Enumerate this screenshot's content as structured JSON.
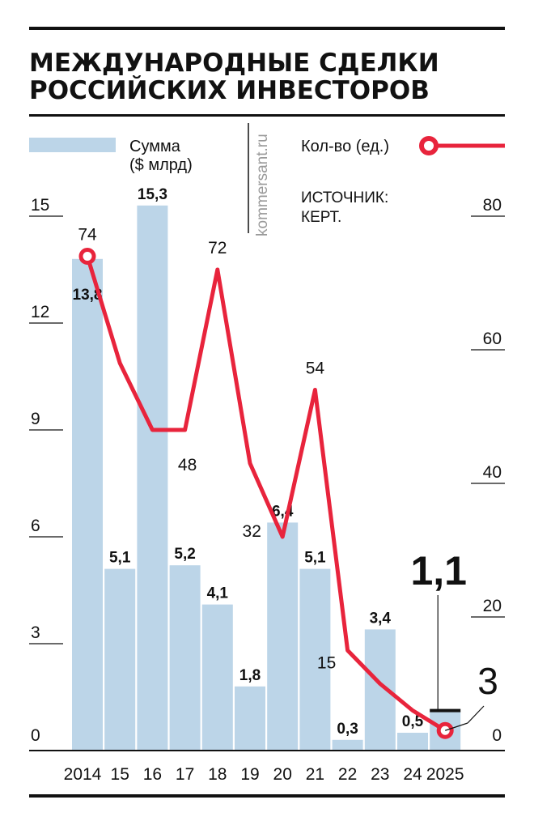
{
  "title_lines": [
    "МЕЖДУНАРОДНЫЕ СДЕЛКИ",
    "РОССИЙСКИХ ИНВЕСТОРОВ"
  ],
  "watermark": "kommersant.ru",
  "source_lines": [
    "ИСТОЧНИК:",
    "КЕРТ."
  ],
  "colors": {
    "bar": "#bcd5e8",
    "line": "#e8243c",
    "text": "#111111"
  },
  "chart_data": {
    "type": "bar+line",
    "categories": [
      "2014",
      "15",
      "16",
      "17",
      "18",
      "19",
      "20",
      "21",
      "22",
      "23",
      "24",
      "2025"
    ],
    "series": [
      {
        "name": "Сумма ($ млрд)",
        "name_lines": [
          "Сумма",
          "($ млрд)"
        ],
        "type": "bar",
        "axis": "left",
        "values": [
          13.8,
          5.1,
          15.3,
          5.2,
          4.1,
          1.8,
          6.4,
          5.1,
          0.3,
          3.4,
          0.5,
          1.1
        ],
        "labels": [
          "13,8",
          "5,1",
          "15,3",
          "5,2",
          "4,1",
          "1,8",
          "6,4",
          "5,1",
          "0,3",
          "3,4",
          "0,5",
          "1,1"
        ]
      },
      {
        "name": "Кол-во (ед.)",
        "type": "line",
        "axis": "right",
        "values": [
          74,
          58,
          48,
          48,
          72,
          43,
          32,
          54,
          15,
          10,
          6,
          3
        ],
        "labels": [
          "74",
          null,
          null,
          "48",
          "72",
          null,
          "32",
          "54",
          "15",
          null,
          null,
          "3"
        ]
      }
    ],
    "left_axis": {
      "range": [
        0,
        15
      ],
      "ticks": [
        "0",
        "3",
        "6",
        "9",
        "12",
        "15"
      ]
    },
    "right_axis": {
      "range": [
        0,
        80
      ],
      "ticks": [
        "0",
        "20",
        "40",
        "60",
        "80"
      ]
    },
    "legend": "top",
    "grid": false
  }
}
